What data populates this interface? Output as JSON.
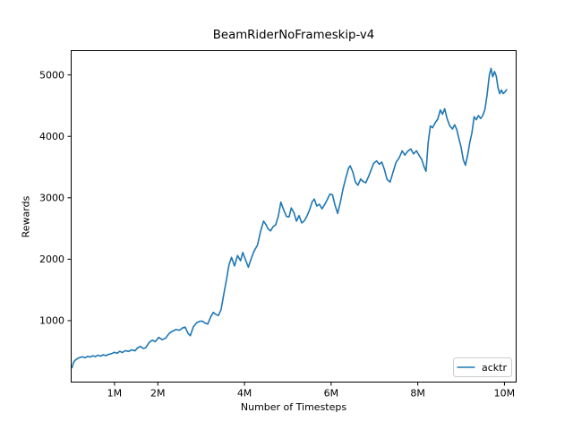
{
  "figure": {
    "background": "#ffffff",
    "text_color": "#000000"
  },
  "chart_data": {
    "type": "line",
    "title": "BeamRiderNoFrameskip-v4",
    "xlabel": "Number of Timesteps",
    "ylabel": "Rewards",
    "grid": false,
    "xlim_millions": [
      0,
      10.27
    ],
    "ylim": [
      0,
      5396
    ],
    "x_ticks": [
      {
        "value": 1,
        "label": "1M"
      },
      {
        "value": 2,
        "label": "2M"
      },
      {
        "value": 4,
        "label": "4M"
      },
      {
        "value": 6,
        "label": "6M"
      },
      {
        "value": 8,
        "label": "8M"
      },
      {
        "value": 10,
        "label": "10M"
      }
    ],
    "y_ticks": [
      {
        "value": 1000,
        "label": "1000"
      },
      {
        "value": 2000,
        "label": "2000"
      },
      {
        "value": 3000,
        "label": "3000"
      },
      {
        "value": 4000,
        "label": "4000"
      },
      {
        "value": 5000,
        "label": "5000"
      }
    ],
    "legend": {
      "position": "lower right",
      "border_color": "#cccccc",
      "entries": [
        {
          "label": "acktr",
          "color": "#1f77b4"
        }
      ]
    },
    "series": [
      {
        "name": "acktr",
        "color": "#1f77b4",
        "points_millions_vs_reward": [
          [
            0.02,
            235
          ],
          [
            0.06,
            330
          ],
          [
            0.1,
            360
          ],
          [
            0.15,
            385
          ],
          [
            0.2,
            400
          ],
          [
            0.26,
            412
          ],
          [
            0.32,
            396
          ],
          [
            0.38,
            418
          ],
          [
            0.44,
            408
          ],
          [
            0.5,
            428
          ],
          [
            0.56,
            414
          ],
          [
            0.62,
            438
          ],
          [
            0.68,
            422
          ],
          [
            0.74,
            445
          ],
          [
            0.8,
            430
          ],
          [
            0.86,
            450
          ],
          [
            0.93,
            462
          ],
          [
            1.0,
            486
          ],
          [
            1.06,
            468
          ],
          [
            1.12,
            502
          ],
          [
            1.18,
            480
          ],
          [
            1.25,
            512
          ],
          [
            1.32,
            498
          ],
          [
            1.4,
            525
          ],
          [
            1.47,
            508
          ],
          [
            1.54,
            562
          ],
          [
            1.6,
            580
          ],
          [
            1.66,
            548
          ],
          [
            1.72,
            558
          ],
          [
            1.8,
            645
          ],
          [
            1.87,
            682
          ],
          [
            1.94,
            658
          ],
          [
            2.02,
            728
          ],
          [
            2.1,
            690
          ],
          [
            2.18,
            715
          ],
          [
            2.26,
            790
          ],
          [
            2.34,
            830
          ],
          [
            2.42,
            855
          ],
          [
            2.5,
            845
          ],
          [
            2.58,
            885
          ],
          [
            2.63,
            895
          ],
          [
            2.7,
            790
          ],
          [
            2.75,
            755
          ],
          [
            2.82,
            900
          ],
          [
            2.9,
            968
          ],
          [
            2.97,
            990
          ],
          [
            3.03,
            992
          ],
          [
            3.09,
            960
          ],
          [
            3.15,
            944
          ],
          [
            3.22,
            1060
          ],
          [
            3.28,
            1135
          ],
          [
            3.34,
            1100
          ],
          [
            3.4,
            1085
          ],
          [
            3.46,
            1180
          ],
          [
            3.52,
            1420
          ],
          [
            3.58,
            1650
          ],
          [
            3.64,
            1900
          ],
          [
            3.7,
            2030
          ],
          [
            3.77,
            1890
          ],
          [
            3.84,
            2060
          ],
          [
            3.91,
            1975
          ],
          [
            3.96,
            2110
          ],
          [
            4.03,
            1980
          ],
          [
            4.09,
            1870
          ],
          [
            4.15,
            2000
          ],
          [
            4.22,
            2130
          ],
          [
            4.3,
            2230
          ],
          [
            4.37,
            2450
          ],
          [
            4.44,
            2620
          ],
          [
            4.49,
            2570
          ],
          [
            4.54,
            2500
          ],
          [
            4.6,
            2460
          ],
          [
            4.66,
            2530
          ],
          [
            4.72,
            2560
          ],
          [
            4.78,
            2700
          ],
          [
            4.84,
            2930
          ],
          [
            4.9,
            2810
          ],
          [
            4.97,
            2695
          ],
          [
            5.03,
            2690
          ],
          [
            5.08,
            2835
          ],
          [
            5.14,
            2760
          ],
          [
            5.2,
            2620
          ],
          [
            5.26,
            2710
          ],
          [
            5.32,
            2590
          ],
          [
            5.38,
            2625
          ],
          [
            5.44,
            2700
          ],
          [
            5.5,
            2800
          ],
          [
            5.56,
            2930
          ],
          [
            5.61,
            2980
          ],
          [
            5.67,
            2865
          ],
          [
            5.73,
            2895
          ],
          [
            5.79,
            2820
          ],
          [
            5.85,
            2890
          ],
          [
            5.91,
            2970
          ],
          [
            5.97,
            3060
          ],
          [
            6.03,
            3050
          ],
          [
            6.09,
            2880
          ],
          [
            6.15,
            2745
          ],
          [
            6.21,
            2920
          ],
          [
            6.27,
            3130
          ],
          [
            6.33,
            3300
          ],
          [
            6.4,
            3480
          ],
          [
            6.44,
            3520
          ],
          [
            6.5,
            3420
          ],
          [
            6.56,
            3255
          ],
          [
            6.62,
            3205
          ],
          [
            6.68,
            3305
          ],
          [
            6.74,
            3265
          ],
          [
            6.8,
            3245
          ],
          [
            6.86,
            3340
          ],
          [
            6.92,
            3450
          ],
          [
            6.98,
            3560
          ],
          [
            7.05,
            3600
          ],
          [
            7.11,
            3545
          ],
          [
            7.17,
            3580
          ],
          [
            7.23,
            3460
          ],
          [
            7.29,
            3300
          ],
          [
            7.36,
            3255
          ],
          [
            7.43,
            3420
          ],
          [
            7.5,
            3580
          ],
          [
            7.57,
            3650
          ],
          [
            7.64,
            3765
          ],
          [
            7.7,
            3695
          ],
          [
            7.77,
            3760
          ],
          [
            7.84,
            3795
          ],
          [
            7.9,
            3715
          ],
          [
            7.97,
            3765
          ],
          [
            8.03,
            3690
          ],
          [
            8.09,
            3625
          ],
          [
            8.15,
            3495
          ],
          [
            8.19,
            3430
          ],
          [
            8.24,
            3900
          ],
          [
            8.29,
            4170
          ],
          [
            8.34,
            4140
          ],
          [
            8.4,
            4220
          ],
          [
            8.46,
            4280
          ],
          [
            8.52,
            4430
          ],
          [
            8.57,
            4360
          ],
          [
            8.62,
            4450
          ],
          [
            8.68,
            4280
          ],
          [
            8.74,
            4170
          ],
          [
            8.8,
            4120
          ],
          [
            8.85,
            4190
          ],
          [
            8.9,
            4110
          ],
          [
            8.95,
            3960
          ],
          [
            9.0,
            3820
          ],
          [
            9.05,
            3620
          ],
          [
            9.1,
            3530
          ],
          [
            9.15,
            3690
          ],
          [
            9.2,
            3900
          ],
          [
            9.25,
            4060
          ],
          [
            9.3,
            4320
          ],
          [
            9.35,
            4270
          ],
          [
            9.4,
            4340
          ],
          [
            9.45,
            4290
          ],
          [
            9.5,
            4340
          ],
          [
            9.55,
            4440
          ],
          [
            9.6,
            4680
          ],
          [
            9.65,
            4990
          ],
          [
            9.69,
            5105
          ],
          [
            9.73,
            4970
          ],
          [
            9.77,
            5055
          ],
          [
            9.81,
            4985
          ],
          [
            9.85,
            4800
          ],
          [
            9.89,
            4695
          ],
          [
            9.93,
            4755
          ],
          [
            9.97,
            4695
          ],
          [
            10.02,
            4730
          ],
          [
            10.05,
            4760
          ]
        ]
      }
    ]
  }
}
